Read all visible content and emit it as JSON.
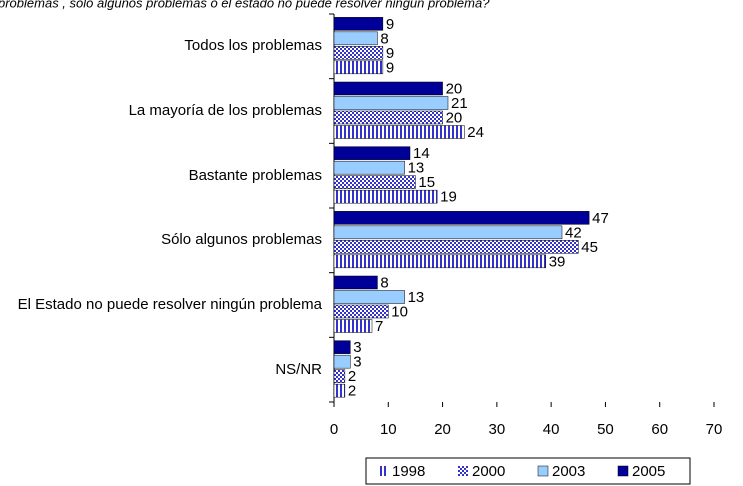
{
  "chart_data": {
    "type": "bar",
    "orientation": "horizontal",
    "title": "problemas , sólo algunos problemas o el estado no puede resolver ningún problema?",
    "categories": [
      "Todos los problemas",
      "La mayoría de los problemas",
      "Bastante problemas",
      "Sólo algunos problemas",
      "El Estado no puede resolver ningún problema",
      "NS/NR"
    ],
    "series": [
      {
        "name": "1998",
        "color": "#3333cc",
        "pattern": "striped",
        "values": [
          9,
          24,
          19,
          39,
          7,
          2
        ]
      },
      {
        "name": "2000",
        "color": "#3333cc",
        "pattern": "checkered",
        "values": [
          9,
          20,
          15,
          45,
          10,
          2
        ]
      },
      {
        "name": "2003",
        "color": "#99ccff",
        "pattern": "solid",
        "values": [
          8,
          21,
          13,
          42,
          13,
          3
        ]
      },
      {
        "name": "2005",
        "color": "#000099",
        "pattern": "solid",
        "values": [
          9,
          20,
          14,
          47,
          8,
          3
        ]
      }
    ],
    "xlim": [
      0,
      70
    ],
    "xticks": [
      0,
      10,
      20,
      30,
      40,
      50,
      60,
      70
    ],
    "legend": "bottom",
    "grid": false
  }
}
